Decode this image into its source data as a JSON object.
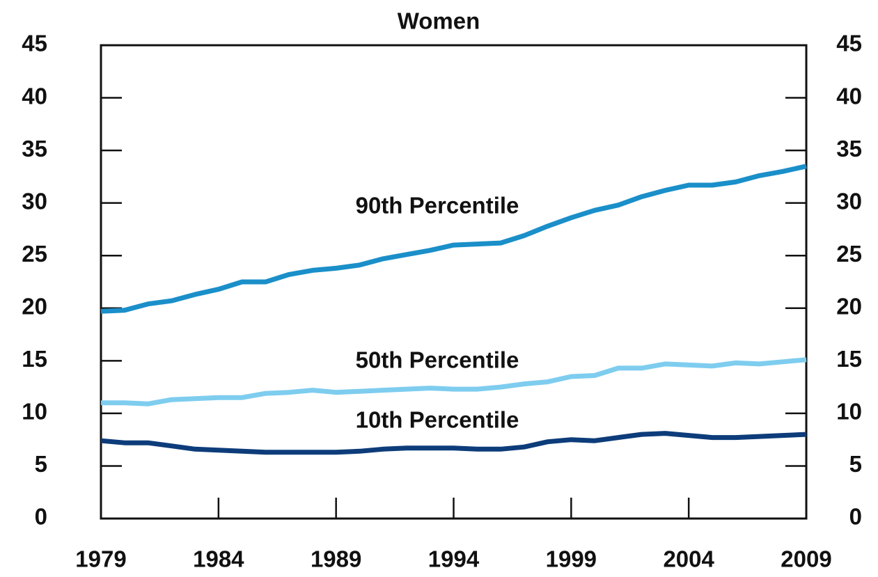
{
  "chart_data": {
    "type": "line",
    "title": "Women",
    "x": [
      1979,
      1980,
      1981,
      1982,
      1983,
      1984,
      1985,
      1986,
      1987,
      1988,
      1989,
      1990,
      1991,
      1992,
      1993,
      1994,
      1995,
      1996,
      1997,
      1998,
      1999,
      2000,
      2001,
      2002,
      2003,
      2004,
      2005,
      2006,
      2007,
      2008,
      2009
    ],
    "xlim": [
      1979,
      2009
    ],
    "xticks": [
      1979,
      1984,
      1989,
      1994,
      1999,
      2004,
      2009
    ],
    "ylim": [
      0,
      45
    ],
    "yticks": [
      0,
      5,
      10,
      15,
      20,
      25,
      30,
      35,
      40,
      45
    ],
    "y2lim": [
      0,
      45
    ],
    "y2ticks": [
      0,
      5,
      10,
      15,
      20,
      25,
      30,
      35,
      40,
      45
    ],
    "grid": false,
    "series": [
      {
        "name": "90th Percentile",
        "color": "#1a8fc9",
        "values": [
          19.7,
          19.8,
          20.4,
          20.7,
          21.3,
          21.8,
          22.5,
          22.5,
          23.2,
          23.6,
          23.8,
          24.1,
          24.7,
          25.1,
          25.5,
          26.0,
          26.1,
          26.2,
          26.9,
          27.8,
          28.6,
          29.3,
          29.8,
          30.6,
          31.2,
          31.7,
          31.7,
          32.0,
          32.6,
          33.0,
          33.5
        ]
      },
      {
        "name": "50th Percentile",
        "color": "#7ecdef",
        "values": [
          11.0,
          11.0,
          10.9,
          11.3,
          11.4,
          11.5,
          11.5,
          11.9,
          12.0,
          12.2,
          12.0,
          12.1,
          12.2,
          12.3,
          12.4,
          12.3,
          12.3,
          12.5,
          12.8,
          13.0,
          13.5,
          13.6,
          14.3,
          14.3,
          14.7,
          14.6,
          14.5,
          14.8,
          14.7,
          14.9,
          15.1
        ]
      },
      {
        "name": "10th Percentile",
        "color": "#0d3c7a",
        "values": [
          7.4,
          7.2,
          7.2,
          6.9,
          6.6,
          6.5,
          6.4,
          6.3,
          6.3,
          6.3,
          6.3,
          6.4,
          6.6,
          6.7,
          6.7,
          6.7,
          6.6,
          6.6,
          6.8,
          7.3,
          7.5,
          7.4,
          7.7,
          8.0,
          8.1,
          7.9,
          7.7,
          7.7,
          7.8,
          7.9,
          8.0
        ]
      }
    ]
  }
}
